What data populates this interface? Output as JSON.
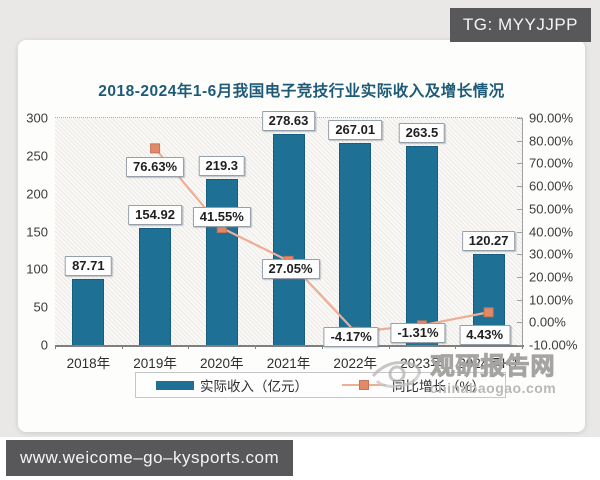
{
  "badges": {
    "tg": "TG: MYYJJPP",
    "site": "www.weicome–go–kysports.com"
  },
  "chart_data": {
    "type": "bar",
    "title": "2018-2024年1-6月我国电子竞技行业实际收入及增长情况",
    "categories": [
      "2018年",
      "2019年",
      "2020年",
      "2021年",
      "2022年",
      "2023年",
      "2024年H1"
    ],
    "series": [
      {
        "name": "实际收入（亿元）",
        "type": "bar",
        "color": "#1f7095",
        "values": [
          87.71,
          154.92,
          219.3,
          278.63,
          267.01,
          263.5,
          120.27
        ],
        "labels": [
          "87.71",
          "154.92",
          "219.3",
          "278.63",
          "267.01",
          "263.5",
          "120.27"
        ]
      },
      {
        "name": "同比增长（%）",
        "type": "line",
        "color": "#e28a68",
        "line_color": "#efae94",
        "values": [
          null,
          76.63,
          41.55,
          27.05,
          -4.17,
          -1.31,
          4.43
        ],
        "labels": [
          null,
          "76.63%",
          "41.55%",
          "27.05%",
          "-4.17%",
          "-1.31%",
          "4.43%"
        ]
      }
    ],
    "left_axis": {
      "min": 0,
      "max": 300,
      "ticks": [
        "300",
        "250",
        "200",
        "150",
        "100",
        "50",
        "0"
      ]
    },
    "right_axis": {
      "min": -10,
      "max": 90,
      "ticks": [
        "90.00%",
        "80.00%",
        "70.00%",
        "60.00%",
        "50.00%",
        "40.00%",
        "30.00%",
        "20.00%",
        "10.00%",
        "0.00%",
        "-10.00%"
      ]
    },
    "legend_position": "bottom",
    "grid": "top dotted line only, hatched plot background"
  },
  "watermark": {
    "brand": "观研报告网",
    "domain": "chinabaogao.com"
  },
  "colors": {
    "bar": "#1f7095",
    "line": "#efae94",
    "marker": "#e28a68",
    "title": "#1d5a78",
    "badge_bg": "#58585a",
    "page_bg": "#e9e8e7",
    "card_bg": "#fdfdfc"
  }
}
